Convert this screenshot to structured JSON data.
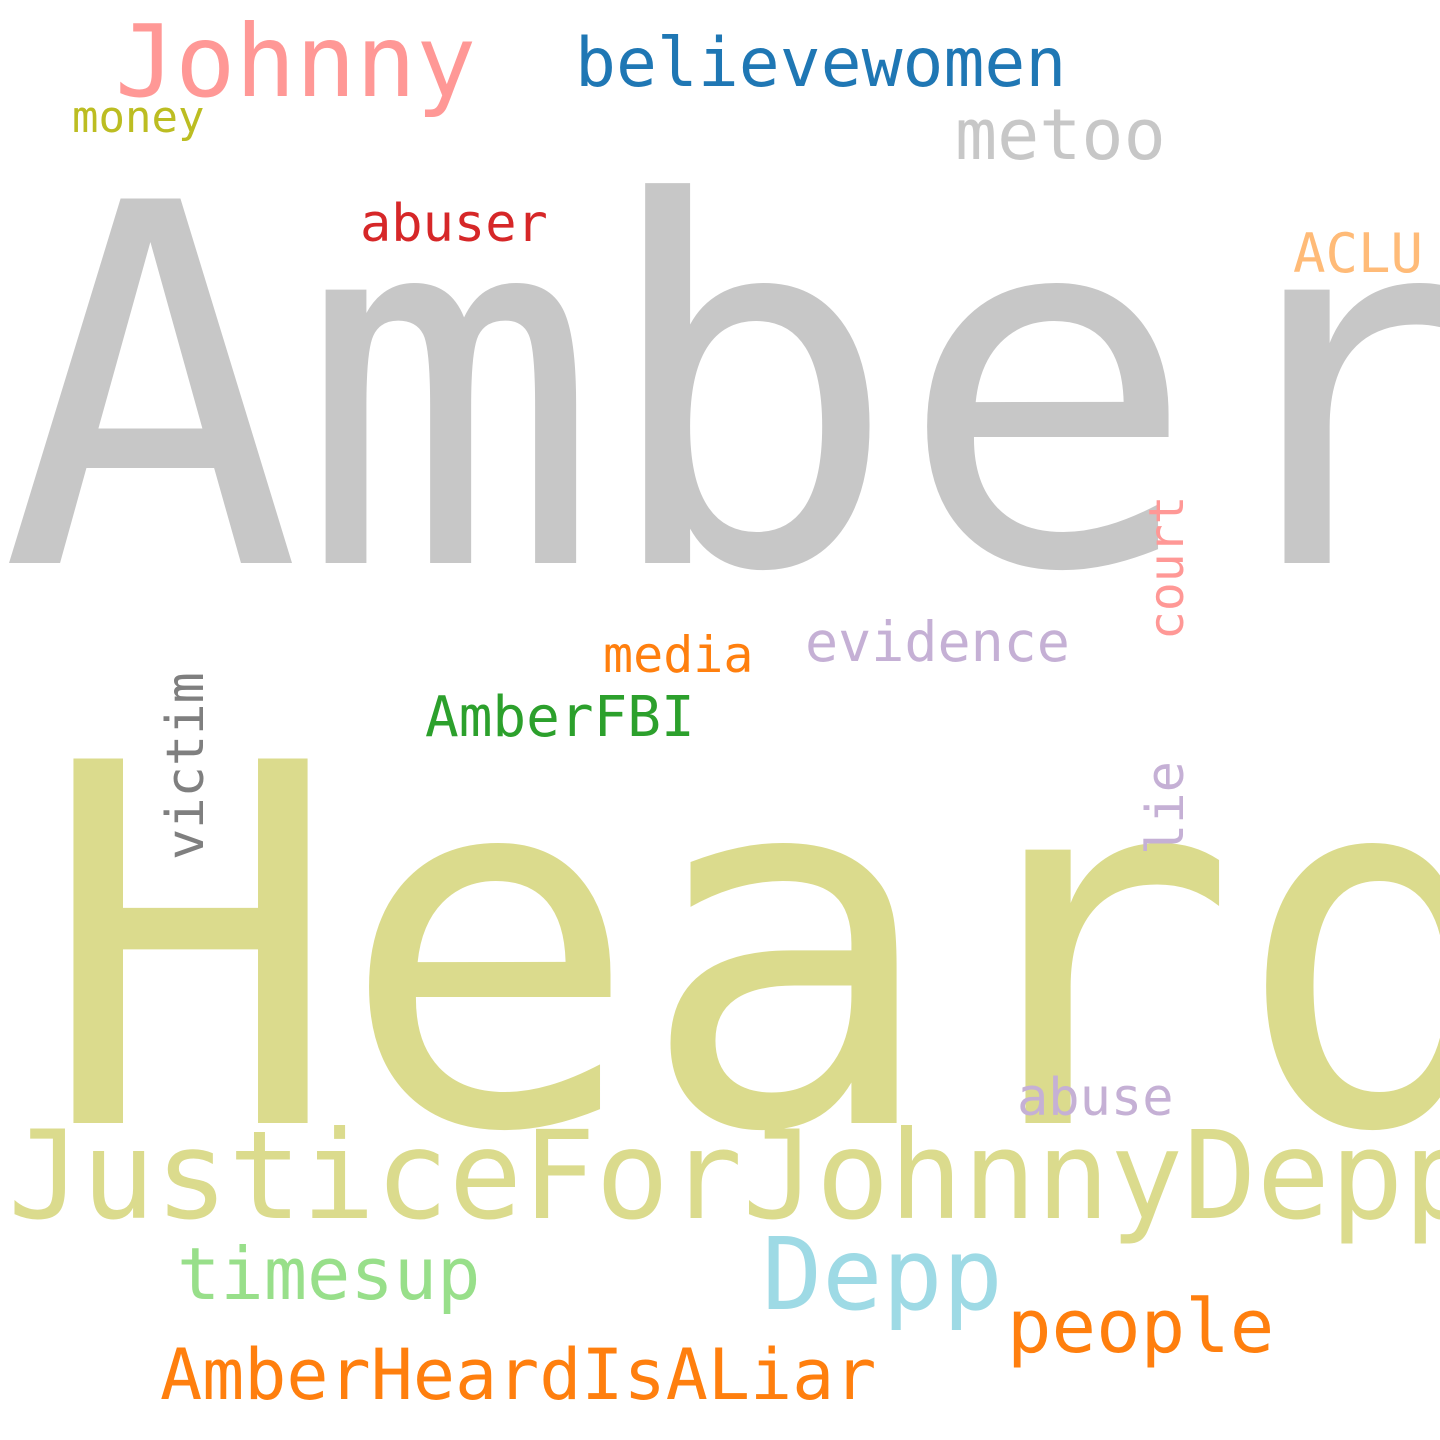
{
  "wordcloud": {
    "words": {
      "amber": {
        "text": "Amber",
        "color": "#c7c7c7"
      },
      "heard": {
        "text": "Heard",
        "color": "#dbdb8d"
      },
      "johnny": {
        "text": "Johnny",
        "color": "#ff9896"
      },
      "believe": {
        "text": "believewomen",
        "color": "#1f77b4"
      },
      "money": {
        "text": "money",
        "color": "#bcbd22"
      },
      "metoo": {
        "text": "metoo",
        "color": "#c7c7c7"
      },
      "abuser": {
        "text": "abuser",
        "color": "#d62728"
      },
      "aclu": {
        "text": "ACLU",
        "color": "#ffbb78"
      },
      "court": {
        "text": "court",
        "color": "#ff9896"
      },
      "evidence": {
        "text": "evidence",
        "color": "#c5b0d5"
      },
      "media": {
        "text": "media",
        "color": "#ff7f0e"
      },
      "amberfbi": {
        "text": "AmberFBI",
        "color": "#2ca02c"
      },
      "victim": {
        "text": "victim",
        "color": "#7f7f7f"
      },
      "lie": {
        "text": "lie",
        "color": "#c5b0d5"
      },
      "abuse": {
        "text": "abuse",
        "color": "#c5b0d5"
      },
      "justice": {
        "text": "JusticeForJohnnyDepp",
        "color": "#dbdb8d"
      },
      "timesup": {
        "text": "timesup",
        "color": "#98df8a"
      },
      "depp": {
        "text": "Depp",
        "color": "#9edae5"
      },
      "people": {
        "text": "people",
        "color": "#ff7f0e"
      },
      "liar": {
        "text": "AmberHeardIsALiar",
        "color": "#ff7f0e"
      }
    }
  }
}
